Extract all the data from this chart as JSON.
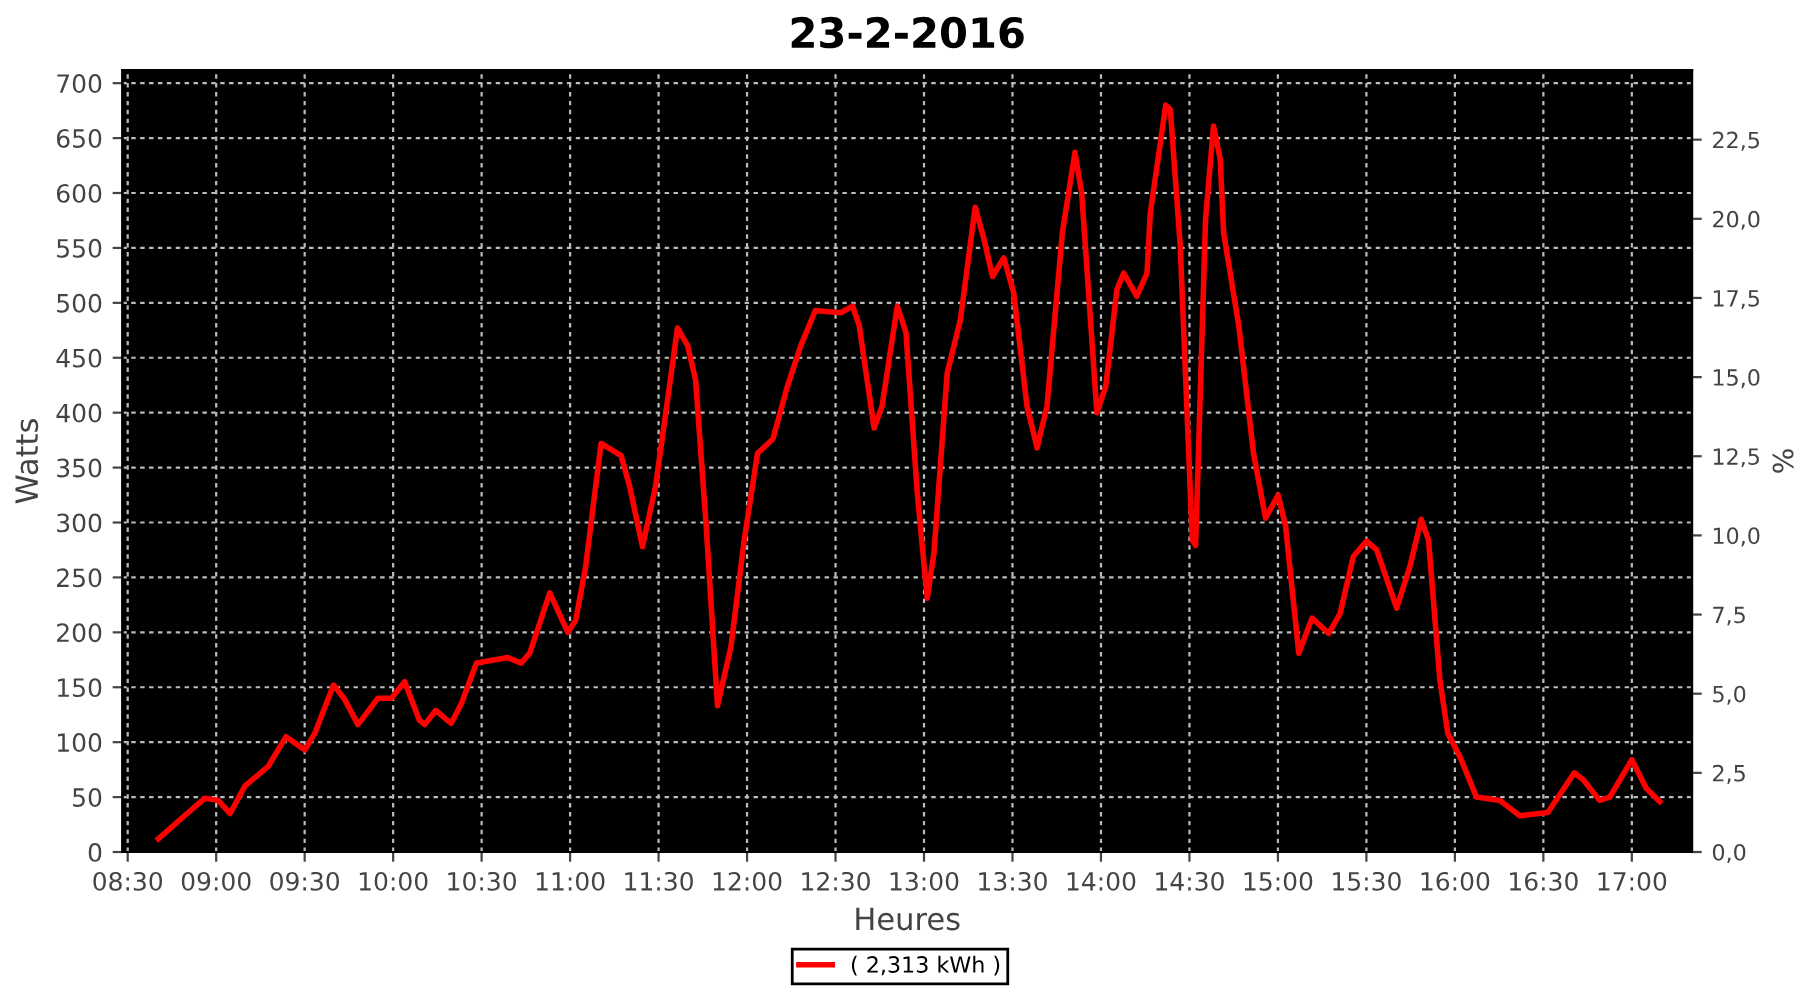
{
  "chart_data": {
    "type": "line",
    "title": "23-2-2016",
    "xlabel": "Heures",
    "ylabel": "Watts",
    "y2label": "%",
    "series": [
      {
        "name": "( 2,313 kWh )",
        "color": "#ff0000",
        "x": [
          8.673,
          8.842,
          8.937,
          9.011,
          9.079,
          9.162,
          9.294,
          9.395,
          9.501,
          9.557,
          9.663,
          9.726,
          9.801,
          9.914,
          9.99,
          10.065,
          10.148,
          10.178,
          10.241,
          10.328,
          10.385,
          10.471,
          10.648,
          10.723,
          10.772,
          10.885,
          10.987,
          11.032,
          11.088,
          11.175,
          11.288,
          11.336,
          11.409,
          11.483,
          11.607,
          11.664,
          11.709,
          11.769,
          11.833,
          11.909,
          11.984,
          12.059,
          12.146,
          12.228,
          12.304,
          12.386,
          12.529,
          12.597,
          12.634,
          12.718,
          12.763,
          12.849,
          12.898,
          12.962,
          13.018,
          13.056,
          13.131,
          13.206,
          13.289,
          13.339,
          13.387,
          13.451,
          13.507,
          13.582,
          13.639,
          13.695,
          13.782,
          13.853,
          13.891,
          13.977,
          14.027,
          14.09,
          14.128,
          14.203,
          14.26,
          14.279,
          14.366,
          14.392,
          14.448,
          14.516,
          14.535,
          14.591,
          14.636,
          14.674,
          14.693,
          14.779,
          14.862,
          14.93,
          15.001,
          15.043,
          15.118,
          15.193,
          15.287,
          15.351,
          15.426,
          15.501,
          15.558,
          15.671,
          15.746,
          15.81,
          15.851,
          15.915,
          15.96,
          16.028,
          16.122,
          16.254,
          16.367,
          16.525,
          16.675,
          16.724,
          16.818,
          16.875,
          17.0,
          17.081,
          17.157
        ],
        "values": [
          12,
          36,
          49,
          47,
          35,
          60,
          78,
          105,
          93,
          108,
          152,
          139,
          116,
          140,
          140,
          155,
          120,
          116,
          129,
          117,
          135,
          172,
          177,
          172,
          181,
          236,
          200,
          211,
          260,
          372,
          361,
          333,
          278,
          333,
          477,
          461,
          430,
          297,
          133,
          187,
          284,
          363,
          376,
          424,
          461,
          493,
          491,
          497,
          479,
          386,
          406,
          497,
          473,
          327,
          231,
          272,
          436,
          485,
          587,
          558,
          524,
          541,
          509,
          406,
          368,
          406,
          564,
          637,
          600,
          400,
          424,
          512,
          527,
          506,
          527,
          582,
          680,
          676,
          552,
          284,
          279,
          576,
          661,
          631,
          564,
          479,
          363,
          304,
          325,
          297,
          181,
          213,
          199,
          217,
          269,
          283,
          275,
          222,
          260,
          303,
          284,
          157,
          108,
          87,
          50,
          47,
          33,
          36,
          72,
          66,
          47,
          50,
          84,
          58,
          46
        ]
      }
    ],
    "xlim": [
      8.47,
      17.34
    ],
    "xticks": [
      {
        "value": 8.5,
        "label": "08:30"
      },
      {
        "value": 9,
        "label": "09:00"
      },
      {
        "value": 9.5,
        "label": "09:30"
      },
      {
        "value": 10,
        "label": "10:00"
      },
      {
        "value": 10.5,
        "label": "10:30"
      },
      {
        "value": 11,
        "label": "11:00"
      },
      {
        "value": 11.5,
        "label": "11:30"
      },
      {
        "value": 12,
        "label": "12:00"
      },
      {
        "value": 12.5,
        "label": "12:30"
      },
      {
        "value": 13,
        "label": "13:00"
      },
      {
        "value": 13.5,
        "label": "13:30"
      },
      {
        "value": 14,
        "label": "14:00"
      },
      {
        "value": 14.5,
        "label": "14:30"
      },
      {
        "value": 15,
        "label": "15:00"
      },
      {
        "value": 15.5,
        "label": "15:30"
      },
      {
        "value": 16,
        "label": "16:00"
      },
      {
        "value": 16.5,
        "label": "16:30"
      },
      {
        "value": 17,
        "label": "17:00"
      }
    ],
    "ylim": [
      0,
      712
    ],
    "yticks": [
      0,
      50,
      100,
      150,
      200,
      250,
      300,
      350,
      400,
      450,
      500,
      550,
      600,
      650,
      700
    ],
    "y2lim": [
      0,
      24.7
    ],
    "y2ticks": [
      {
        "value": 0,
        "label": "0,0"
      },
      {
        "value": 2.5,
        "label": "2,5"
      },
      {
        "value": 5,
        "label": "5,0"
      },
      {
        "value": 7.5,
        "label": "7,5"
      },
      {
        "value": 10,
        "label": "10,0"
      },
      {
        "value": 12.5,
        "label": "12,5"
      },
      {
        "value": 15,
        "label": "15,0"
      },
      {
        "value": 17.5,
        "label": "17,5"
      },
      {
        "value": 20,
        "label": "20,0"
      },
      {
        "value": 22.5,
        "label": "22,5"
      }
    ],
    "grid": true,
    "legend": "bottom",
    "marker": "none",
    "line_style": "solid"
  }
}
